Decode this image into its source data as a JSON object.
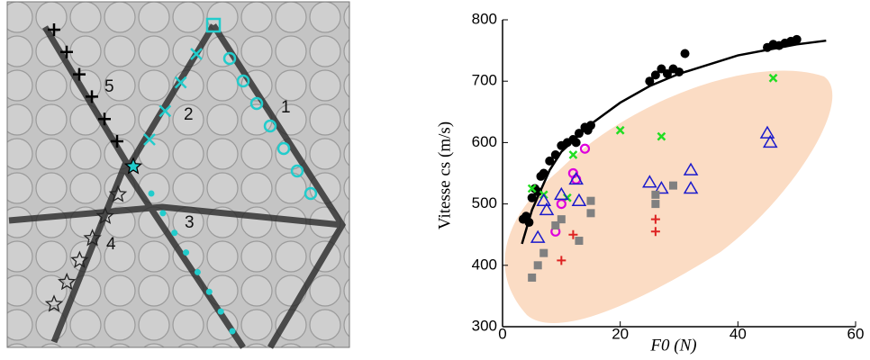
{
  "photo": {
    "labels": [
      "1",
      "2",
      "3",
      "4",
      "5"
    ]
  },
  "chart_data": {
    "type": "scatter",
    "x_label": "F0 (N)",
    "y_label": "Vitesse cs (m/s)",
    "xlim": [
      0,
      60
    ],
    "ylim": [
      300,
      800
    ],
    "xticks": [
      0,
      20,
      40,
      60
    ],
    "yticks": [
      300,
      400,
      500,
      600,
      700,
      800
    ],
    "series": [
      {
        "color": "#000000",
        "marker": "dot",
        "x": [
          3.5,
          4,
          4.5,
          5,
          5.5,
          6,
          6.5,
          7,
          8,
          9,
          10,
          11,
          12,
          12.5,
          13,
          14,
          14.5,
          15,
          25,
          26,
          27,
          28,
          29,
          30,
          31,
          45,
          46,
          47,
          48,
          49,
          50
        ],
        "values": [
          475,
          480,
          470,
          510,
          525,
          520,
          545,
          550,
          570,
          580,
          595,
          600,
          605,
          600,
          615,
          625,
          620,
          628,
          700,
          710,
          720,
          712,
          720,
          715,
          745,
          755,
          760,
          758,
          762,
          765,
          768
        ]
      },
      {
        "color": "#000000",
        "marker": "line",
        "x": [
          3.3,
          5,
          8,
          10,
          15,
          20,
          25,
          30,
          40,
          50,
          55
        ],
        "values": [
          435,
          490,
          555,
          585,
          630,
          665,
          692,
          712,
          742,
          760,
          766
        ]
      },
      {
        "color": "#22dd22",
        "marker": "x",
        "x": [
          5,
          7,
          11,
          12,
          20,
          27,
          46
        ],
        "values": [
          525,
          515,
          510,
          580,
          620,
          610,
          705
        ]
      },
      {
        "color": "#dd00dd",
        "marker": "circle",
        "x": [
          9,
          10,
          12,
          12.5,
          14
        ],
        "values": [
          455,
          500,
          550,
          540,
          590
        ]
      },
      {
        "color": "#1a1acc",
        "marker": "triangle",
        "x": [
          6,
          7,
          7.5,
          10,
          12.5,
          13,
          25,
          27,
          32,
          32,
          45,
          45.5
        ],
        "values": [
          445,
          505,
          490,
          515,
          540,
          505,
          535,
          525,
          555,
          525,
          615,
          600
        ]
      },
      {
        "color": "#808080",
        "marker": "square",
        "x": [
          5,
          6,
          7,
          9,
          10,
          13,
          15,
          15,
          26,
          26,
          29
        ],
        "values": [
          380,
          400,
          420,
          465,
          475,
          440,
          505,
          485,
          500,
          515,
          530
        ]
      },
      {
        "color": "#dd2222",
        "marker": "plus",
        "x": [
          10,
          12,
          26,
          26
        ],
        "values": [
          408,
          450,
          475,
          455
        ]
      }
    ]
  }
}
